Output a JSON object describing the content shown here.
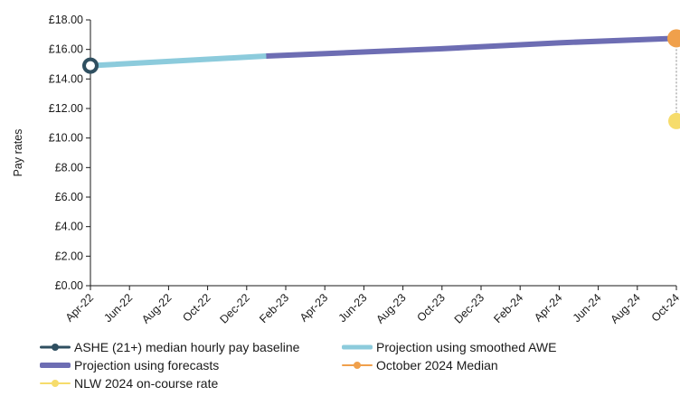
{
  "chart_data": {
    "type": "line",
    "title": "",
    "xlabel": "",
    "ylabel": "Pay rates",
    "ylim": [
      0,
      18
    ],
    "y_ticks": [
      "£0.00",
      "£2.00",
      "£4.00",
      "£6.00",
      "£8.00",
      "£10.00",
      "£12.00",
      "£14.00",
      "£16.00",
      "£18.00"
    ],
    "x_ticks": [
      "Apr-22",
      "Jun-22",
      "Aug-22",
      "Oct-22",
      "Dec-22",
      "Feb-23",
      "Apr-23",
      "Jun-23",
      "Aug-23",
      "Oct-23",
      "Dec-23",
      "Feb-24",
      "Apr-24",
      "Jun-24",
      "Aug-24",
      "Oct-24"
    ],
    "grid": false,
    "legend_position": "bottom",
    "series": [
      {
        "name": "ASHE (21+) median hourly pay baseline",
        "color": "#2f4f60",
        "marker": "ring",
        "points": [
          {
            "x": "Apr-22",
            "y": 14.9
          }
        ]
      },
      {
        "name": "Projection using smoothed AWE",
        "color": "#8ccbdc",
        "points": [
          {
            "x": "Apr-22",
            "y": 14.9
          },
          {
            "x": "Jan-23",
            "y": 15.55
          }
        ]
      },
      {
        "name": "Projection using forecasts",
        "color": "#6d6db3",
        "points": [
          {
            "x": "Jan-23",
            "y": 15.55
          },
          {
            "x": "Oct-23",
            "y": 16.05
          },
          {
            "x": "Apr-24",
            "y": 16.45
          },
          {
            "x": "Oct-24",
            "y": 16.75
          }
        ]
      },
      {
        "name": "October 2024 Median",
        "color": "#f0a04b",
        "marker": "dot",
        "points": [
          {
            "x": "Oct-24",
            "y": 16.75
          }
        ]
      },
      {
        "name": "NLW 2024 on-course rate",
        "color": "#f6dc6c",
        "marker": "dot",
        "points": [
          {
            "x": "Oct-24",
            "y": 11.15
          }
        ]
      }
    ]
  }
}
